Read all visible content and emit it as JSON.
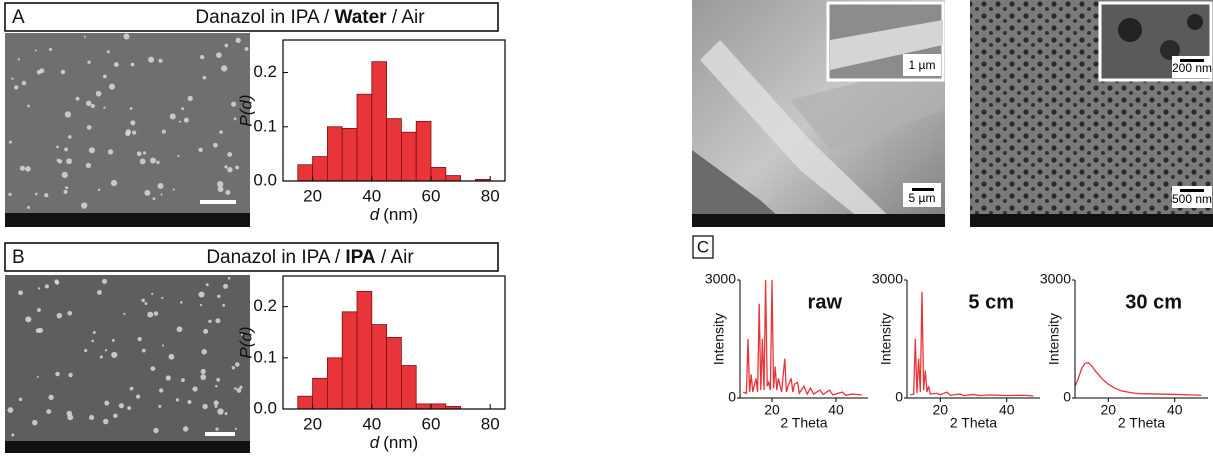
{
  "chart_data": [
    {
      "type": "histogram",
      "panel": "A",
      "title_pre": "Danazol in IPA / ",
      "title_bold": "Water",
      "title_post": " / Air",
      "bins": [
        15,
        20,
        25,
        30,
        35,
        40,
        45,
        50,
        55,
        60,
        65,
        70,
        75,
        80
      ],
      "values": [
        0.03,
        0.045,
        0.1,
        0.097,
        0.16,
        0.22,
        0.115,
        0.09,
        0.11,
        0.025,
        0.01,
        0,
        0.003
      ],
      "color": "#e8353a",
      "xlim": [
        10,
        85
      ],
      "ylim": [
        0,
        0.26
      ],
      "xticks": [
        20,
        40,
        60,
        80
      ],
      "yticks": [
        {
          "value": 0,
          "label": "0.0"
        },
        0.1,
        0.2
      ],
      "x_symbol": "d",
      "x_unit": "(nm)",
      "ylabel": "P(d)"
    },
    {
      "type": "histogram",
      "panel": "B",
      "title_pre": "Danazol in IPA / ",
      "title_bold": "IPA",
      "title_post": " / Air",
      "bins": [
        15,
        20,
        25,
        30,
        35,
        40,
        45,
        50,
        55,
        60,
        65,
        70
      ],
      "values": [
        0.025,
        0.06,
        0.1,
        0.19,
        0.23,
        0.165,
        0.14,
        0.085,
        0.01,
        0.01,
        0.005
      ],
      "color": "#e8353a",
      "xlim": [
        10,
        85
      ],
      "ylim": [
        0,
        0.26
      ],
      "xticks": [
        20,
        40,
        60,
        80
      ],
      "yticks": [
        {
          "value": 0,
          "label": "0.0"
        },
        0.1,
        0.2
      ],
      "x_symbol": "d",
      "x_unit": "(nm)",
      "ylabel": "P(d)"
    },
    {
      "type": "line",
      "panel": "C",
      "annotation": "raw",
      "x": [
        11,
        12,
        12.5,
        13,
        13.5,
        14,
        15,
        15.5,
        16,
        16.5,
        17,
        17.5,
        18,
        18.5,
        19,
        19.5,
        20,
        20.5,
        21,
        21.5,
        22,
        23,
        24,
        24.5,
        25,
        26,
        26.5,
        27,
        28,
        28.5,
        30,
        31,
        32,
        33,
        35,
        36,
        38,
        39,
        42,
        43,
        45,
        48
      ],
      "values": [
        150,
        120,
        1500,
        150,
        600,
        150,
        500,
        150,
        2400,
        200,
        1500,
        200,
        3000,
        300,
        400,
        200,
        3000,
        250,
        800,
        200,
        500,
        150,
        1000,
        150,
        300,
        500,
        150,
        350,
        400,
        120,
        300,
        100,
        250,
        100,
        200,
        90,
        200,
        80,
        150,
        70,
        100,
        80
      ],
      "color": "#e8353a",
      "xlim": [
        10,
        50
      ],
      "ylim": [
        0,
        3000
      ],
      "xticks": [
        20,
        40
      ],
      "yticks": [
        0,
        3000
      ],
      "xlabel": "2 Theta",
      "ylabel": "Intensity"
    },
    {
      "type": "line",
      "annotation": "5 cm",
      "x": [
        11,
        12,
        12.5,
        13,
        13.5,
        14,
        14.5,
        15,
        15.5,
        16,
        16.5,
        17,
        19,
        20,
        22,
        23,
        26,
        27,
        30,
        32,
        35,
        40,
        45,
        48
      ],
      "values": [
        80,
        100,
        1500,
        120,
        1000,
        150,
        2700,
        200,
        700,
        150,
        300,
        100,
        120,
        80,
        150,
        70,
        100,
        60,
        90,
        60,
        80,
        60,
        70,
        50
      ],
      "color": "#e8353a",
      "xlim": [
        10,
        50
      ],
      "ylim": [
        0,
        3000
      ],
      "xticks": [
        20,
        40
      ],
      "yticks": [
        0,
        3000
      ],
      "xlabel": "2 Theta",
      "ylabel": "Intensity"
    },
    {
      "type": "line",
      "annotation": "30 cm",
      "x": [
        10,
        11,
        12,
        13,
        14,
        15,
        16,
        18,
        20,
        22,
        24,
        26,
        28,
        30,
        35,
        40,
        45,
        48
      ],
      "values": [
        300,
        500,
        750,
        880,
        900,
        820,
        700,
        500,
        350,
        250,
        180,
        150,
        120,
        110,
        100,
        90,
        80,
        70
      ],
      "color": "#e8353a",
      "xlim": [
        10,
        50
      ],
      "ylim": [
        0,
        3000
      ],
      "xticks": [
        20,
        40
      ],
      "yticks": [
        0,
        3000
      ],
      "xlabel": "2 Theta",
      "ylabel": "Intensity"
    }
  ],
  "images": {
    "scale_bars": [
      "1 µm",
      "5 µm",
      "200 nm",
      "500 nm"
    ]
  }
}
